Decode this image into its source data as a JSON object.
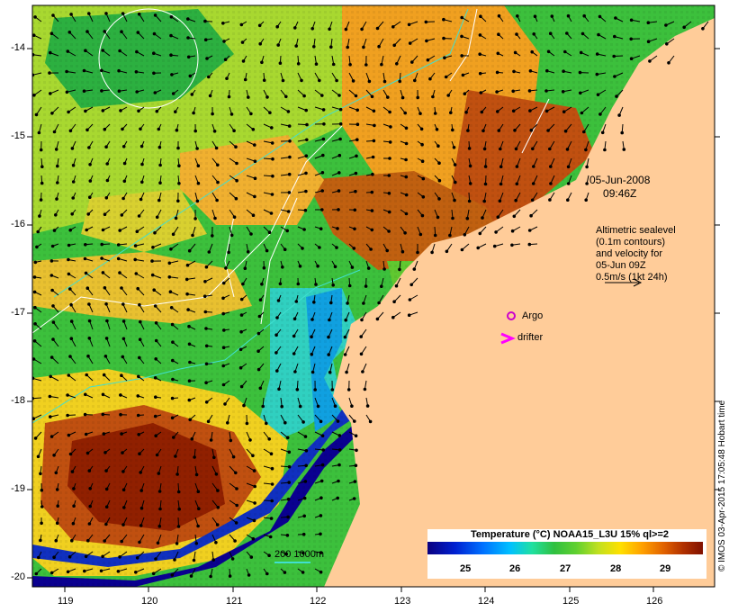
{
  "map": {
    "date_line1": "05-Jun-2008",
    "date_line2": "09:46Z",
    "altimetry_lines": [
      "Altimetric sealevel",
      "(0.1m contours)",
      "and velocity for",
      "05-Jun 09Z",
      "0.5m/s (1kt 24h)"
    ],
    "argo_label": "Argo",
    "drifter_label": "drifter",
    "depth_scale_label": "200  1000m",
    "copyright": "© IMOS 03-Apr-2015 17:05:48 Hobart time"
  },
  "axes": {
    "x_ticks": [
      "119",
      "120",
      "121",
      "122",
      "123",
      "124",
      "125",
      "126"
    ],
    "y_ticks": [
      "-14",
      "-15",
      "-16",
      "-17",
      "-18",
      "-19",
      "-20"
    ]
  },
  "legend": {
    "title": "Temperature (°C) NOAA15_L3U 15% ql>=2",
    "ticks": [
      "25",
      "26",
      "27",
      "28",
      "29"
    ]
  },
  "colors": {
    "land": "#ffcc99",
    "argo_marker": "#cc00cc",
    "drifter_marker": "#ff00ff",
    "contour_white": "#ffffff",
    "isobath_cyan": "#40e0d0"
  }
}
